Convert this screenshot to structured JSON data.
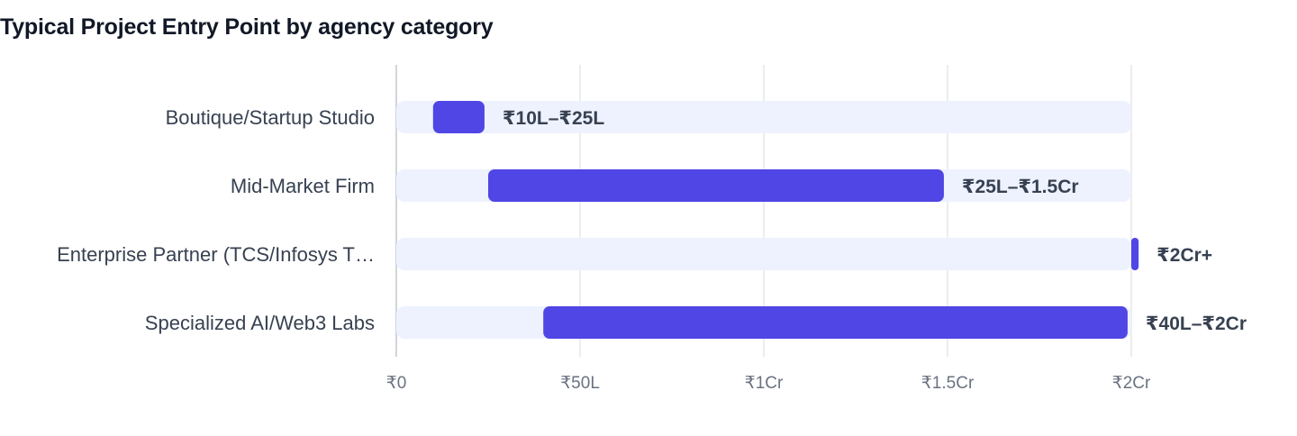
{
  "chart_data": {
    "type": "bar",
    "subtype": "horizontal-range",
    "title": "Typical Project Entry Point by agency category",
    "xlabel": "",
    "ylabel": "",
    "unit": "₹ lakh",
    "xlim": [
      0,
      200
    ],
    "xticks": [
      {
        "value": 0,
        "label": "₹0"
      },
      {
        "value": 50,
        "label": "₹50L"
      },
      {
        "value": 100,
        "label": "₹1Cr"
      },
      {
        "value": 150,
        "label": "₹1.5Cr"
      },
      {
        "value": 200,
        "label": "₹2Cr"
      }
    ],
    "grid": true,
    "legend": "none",
    "colors": {
      "bar": "#4f46e5",
      "track": "#eef2ff",
      "grid": "#e5e7eb",
      "axis": "#d1d5db"
    },
    "categories": [
      "Boutique/Startup Studio",
      "Mid-Market Firm",
      "Enterprise Partner (TCS/Infosys T…",
      "Specialized AI/Web3 Labs"
    ],
    "ranges": [
      {
        "start": 10,
        "end": 24,
        "label": "₹10L–₹25L"
      },
      {
        "start": 25,
        "end": 149,
        "label": "₹25L–₹1.5Cr"
      },
      {
        "start": 200,
        "end": 202,
        "label": "₹2Cr+"
      },
      {
        "start": 40,
        "end": 199,
        "label": "₹40L–₹2Cr"
      }
    ]
  }
}
